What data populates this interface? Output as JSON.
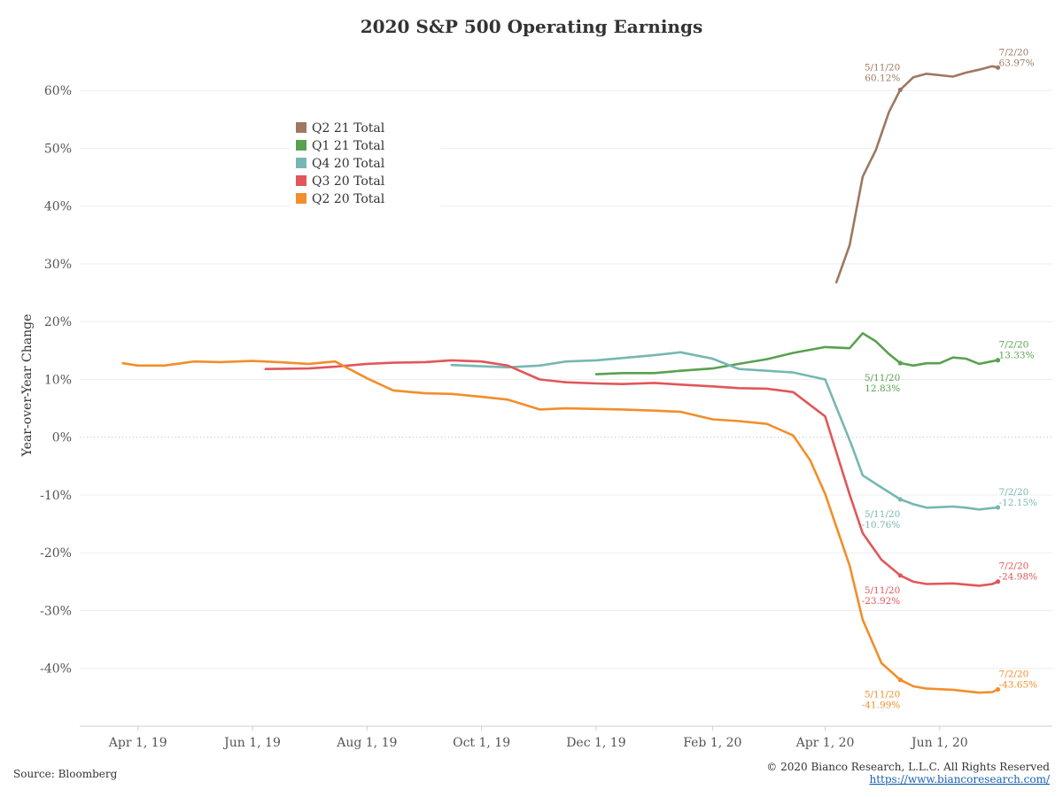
{
  "chart_data": {
    "type": "line",
    "title": "2020 S&P 500 Operating Earnings",
    "ylabel": "Year-over-Year Change",
    "xlabel": "",
    "ylim": [
      -50,
      68
    ],
    "yticks": [
      60,
      50,
      40,
      30,
      20,
      10,
      0,
      -10,
      -20,
      -30,
      -40
    ],
    "ytick_labels": [
      "60%",
      "50%",
      "40%",
      "30%",
      "20%",
      "10%",
      "0%",
      "-10%",
      "-20%",
      "-30%",
      "-40%"
    ],
    "xlim": [
      "2019-03-01",
      "2020-07-31"
    ],
    "xticks": [
      "2019-04-01",
      "2019-06-01",
      "2019-08-01",
      "2019-10-01",
      "2019-12-01",
      "2020-02-01",
      "2020-04-01",
      "2020-06-01"
    ],
    "xtick_labels": [
      "Apr 1, 19",
      "Jun 1, 19",
      "Aug 1, 19",
      "Oct 1, 19",
      "Dec 1, 19",
      "Feb 1, 20",
      "Apr 1, 20",
      "Jun 1, 20"
    ],
    "grid": true,
    "zero_line": "dotted",
    "legend": {
      "position": "upper-left",
      "entries": [
        "Q2 21 Total",
        "Q1 21 Total",
        "Q4 20 Total",
        "Q3 20 Total",
        "Q2 20 Total"
      ]
    },
    "series": [
      {
        "name": "Q2 21 Total",
        "color": "#9e7861",
        "x": [
          "2020-04-07",
          "2020-04-14",
          "2020-04-21",
          "2020-04-28",
          "2020-05-05",
          "2020-05-11",
          "2020-05-18",
          "2020-05-25",
          "2020-06-08",
          "2020-06-15",
          "2020-06-22",
          "2020-06-29",
          "2020-07-02"
        ],
        "y": [
          26.8,
          33.2,
          45.1,
          49.7,
          56.3,
          60.12,
          62.3,
          62.9,
          62.4,
          63.1,
          63.6,
          64.2,
          63.97
        ]
      },
      {
        "name": "Q1 21 Total",
        "color": "#59a14f",
        "x": [
          "2019-12-01",
          "2019-12-15",
          "2020-01-01",
          "2020-01-15",
          "2020-02-01",
          "2020-02-15",
          "2020-03-01",
          "2020-03-15",
          "2020-04-01",
          "2020-04-14",
          "2020-04-21",
          "2020-04-28",
          "2020-05-05",
          "2020-05-11",
          "2020-05-18",
          "2020-05-25",
          "2020-06-01",
          "2020-06-08",
          "2020-06-15",
          "2020-06-22",
          "2020-07-02"
        ],
        "y": [
          10.9,
          11.1,
          11.1,
          11.5,
          11.9,
          12.7,
          13.5,
          14.6,
          15.6,
          15.4,
          18.0,
          16.6,
          14.4,
          12.83,
          12.4,
          12.8,
          12.8,
          13.8,
          13.6,
          12.7,
          13.33
        ]
      },
      {
        "name": "Q4 20 Total",
        "color": "#76b7b2",
        "x": [
          "2019-09-15",
          "2019-10-15",
          "2019-11-01",
          "2019-11-15",
          "2019-12-01",
          "2019-12-15",
          "2020-01-01",
          "2020-01-15",
          "2020-02-01",
          "2020-02-15",
          "2020-03-01",
          "2020-03-15",
          "2020-04-01",
          "2020-04-15",
          "2020-04-21",
          "2020-05-01",
          "2020-05-11",
          "2020-05-18",
          "2020-05-25",
          "2020-06-01",
          "2020-06-08",
          "2020-06-15",
          "2020-06-22",
          "2020-07-02"
        ],
        "y": [
          12.5,
          12.1,
          12.4,
          13.1,
          13.3,
          13.7,
          14.2,
          14.7,
          13.6,
          11.8,
          11.5,
          11.2,
          10.0,
          -1.3,
          -6.6,
          -8.7,
          -10.76,
          -11.6,
          -12.2,
          -12.1,
          -12.0,
          -12.2,
          -12.5,
          -12.15
        ]
      },
      {
        "name": "Q3 20 Total",
        "color": "#e15759",
        "x": [
          "2019-06-08",
          "2019-07-01",
          "2019-07-15",
          "2019-08-01",
          "2019-08-15",
          "2019-09-01",
          "2019-09-15",
          "2019-10-01",
          "2019-10-15",
          "2019-11-01",
          "2019-11-15",
          "2019-12-01",
          "2019-12-15",
          "2020-01-01",
          "2020-01-15",
          "2020-02-01",
          "2020-02-15",
          "2020-03-01",
          "2020-03-15",
          "2020-04-01",
          "2020-04-14",
          "2020-04-21",
          "2020-05-01",
          "2020-05-11",
          "2020-05-18",
          "2020-05-25",
          "2020-06-08",
          "2020-06-22",
          "2020-06-29",
          "2020-07-02"
        ],
        "y": [
          11.8,
          11.9,
          12.2,
          12.7,
          12.9,
          13.0,
          13.3,
          13.1,
          12.4,
          10.0,
          9.5,
          9.3,
          9.2,
          9.4,
          9.1,
          8.8,
          8.5,
          8.4,
          7.8,
          3.6,
          -9.9,
          -16.6,
          -21.2,
          -23.92,
          -25.0,
          -25.4,
          -25.3,
          -25.7,
          -25.4,
          -24.98
        ]
      },
      {
        "name": "Q2 20 Total",
        "color": "#f28e2b",
        "x": [
          "2019-03-24",
          "2019-04-01",
          "2019-04-15",
          "2019-05-01",
          "2019-05-15",
          "2019-06-01",
          "2019-06-15",
          "2019-07-01",
          "2019-07-15",
          "2019-08-01",
          "2019-08-15",
          "2019-09-01",
          "2019-09-15",
          "2019-10-01",
          "2019-10-15",
          "2019-11-01",
          "2019-11-15",
          "2019-12-01",
          "2019-12-15",
          "2020-01-01",
          "2020-01-15",
          "2020-02-01",
          "2020-02-15",
          "2020-03-01",
          "2020-03-15",
          "2020-03-24",
          "2020-04-01",
          "2020-04-08",
          "2020-04-14",
          "2020-04-21",
          "2020-05-01",
          "2020-05-11",
          "2020-05-18",
          "2020-05-25",
          "2020-06-08",
          "2020-06-22",
          "2020-06-29",
          "2020-07-02"
        ],
        "y": [
          12.8,
          12.4,
          12.4,
          13.1,
          13.0,
          13.2,
          13.0,
          12.7,
          13.1,
          10.2,
          8.1,
          7.6,
          7.5,
          7.0,
          6.5,
          4.8,
          5.0,
          4.9,
          4.8,
          4.6,
          4.4,
          3.1,
          2.8,
          2.3,
          0.3,
          -4.0,
          -9.8,
          -16.5,
          -22.2,
          -31.6,
          -39.1,
          -41.99,
          -43.1,
          -43.5,
          -43.7,
          -44.2,
          -44.1,
          -43.65
        ]
      }
    ],
    "annotations": [
      {
        "series": "Q2 21 Total",
        "date_label": "5/11/20",
        "value_label": "60.12%",
        "x": "2020-05-11",
        "y": 60.12,
        "side": "left"
      },
      {
        "series": "Q2 21 Total",
        "date_label": "7/2/20",
        "value_label": "63.97%",
        "x": "2020-07-02",
        "y": 63.97,
        "side": "right"
      },
      {
        "series": "Q1 21 Total",
        "date_label": "5/11/20",
        "value_label": "12.83%",
        "x": "2020-05-11",
        "y": 12.83,
        "side": "left-below"
      },
      {
        "series": "Q1 21 Total",
        "date_label": "7/2/20",
        "value_label": "13.33%",
        "x": "2020-07-02",
        "y": 13.33,
        "side": "right"
      },
      {
        "series": "Q4 20 Total",
        "date_label": "5/11/20",
        "value_label": "-10.76%",
        "x": "2020-05-11",
        "y": -10.76,
        "side": "left-below"
      },
      {
        "series": "Q4 20 Total",
        "date_label": "7/2/20",
        "value_label": "-12.15%",
        "x": "2020-07-02",
        "y": -12.15,
        "side": "right"
      },
      {
        "series": "Q3 20 Total",
        "date_label": "5/11/20",
        "value_label": "-23.92%",
        "x": "2020-05-11",
        "y": -23.92,
        "side": "left-below"
      },
      {
        "series": "Q3 20 Total",
        "date_label": "7/2/20",
        "value_label": "-24.98%",
        "x": "2020-07-02",
        "y": -24.98,
        "side": "right"
      },
      {
        "series": "Q2 20 Total",
        "date_label": "5/11/20",
        "value_label": "-41.99%",
        "x": "2020-05-11",
        "y": -41.99,
        "side": "left-below"
      },
      {
        "series": "Q2 20 Total",
        "date_label": "7/2/20",
        "value_label": "-43.65%",
        "x": "2020-07-02",
        "y": -43.65,
        "side": "right"
      }
    ]
  },
  "footer": {
    "source": "Source: Bloomberg",
    "copyright": "© 2020 Bianco Research, L.L.C. All Rights Reserved",
    "link": "https://www.biancoresearch.com/"
  }
}
